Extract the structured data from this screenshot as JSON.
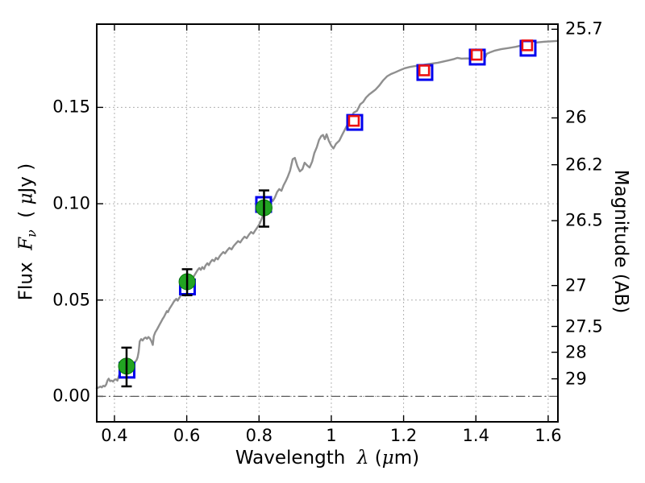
{
  "figure": {
    "xlabel_parts": {
      "prefix": "Wavelength  ",
      "lambda": "λ",
      "paren": " (",
      "mu": "μ",
      "suffix": "m)"
    },
    "ylabel_left_parts": {
      "prefix": "Flux  ",
      "F": "F",
      "nu": "ν",
      "paren": "  ( ",
      "mu": "μ",
      "suffix": "Jy )"
    },
    "ylabel_right": "Magnitude (AB)"
  },
  "chart_data": {
    "type": "line",
    "title": "",
    "xlabel": "Wavelength λ (μm)",
    "ylabel_left": "Flux Fν ( μJy )",
    "ylabel_right": "Magnitude (AB)",
    "xlim": [
      0.351,
      1.627
    ],
    "ylim": [
      -0.0132,
      0.1932
    ],
    "grid": "dotted",
    "x_ticks": {
      "values": [
        0.4,
        0.6,
        0.8,
        1.0,
        1.2,
        1.4,
        1.6
      ],
      "labels": [
        "0.4",
        "0.6",
        "0.8",
        "1",
        "1.2",
        "1.4",
        "1.6"
      ]
    },
    "y_ticks_left": {
      "values": [
        0.0,
        0.05,
        0.1,
        0.15
      ],
      "labels": [
        "0.00",
        "0.05",
        "0.10",
        "0.15"
      ]
    },
    "y_ticks_right": {
      "values": [
        25.7,
        26,
        26.2,
        26.5,
        27,
        27.5,
        28,
        29
      ],
      "labels": [
        "25.7",
        "26",
        "26.2",
        "26.5",
        "27",
        "27.5",
        "28",
        "29"
      ],
      "flux_equivalent": [
        0.19055,
        0.14454,
        0.12023,
        0.0912,
        0.05754,
        0.03631,
        0.02291,
        0.00912
      ]
    },
    "zero_line": {
      "y": 0.0,
      "style": "dash-dot",
      "color": "#5a5a5a"
    },
    "series": [
      {
        "name": "model-spectrum",
        "type": "line",
        "color": "#8f8f8f",
        "linewidth": 2.4,
        "points": [
          [
            0.351,
            0.0042
          ],
          [
            0.356,
            0.0046
          ],
          [
            0.361,
            0.0051
          ],
          [
            0.365,
            0.0047
          ],
          [
            0.369,
            0.0055
          ],
          [
            0.373,
            0.0052
          ],
          [
            0.377,
            0.0062
          ],
          [
            0.381,
            0.0083
          ],
          [
            0.384,
            0.0092
          ],
          [
            0.388,
            0.0079
          ],
          [
            0.392,
            0.0082
          ],
          [
            0.396,
            0.0077
          ],
          [
            0.4,
            0.0086
          ],
          [
            0.404,
            0.0089
          ],
          [
            0.408,
            0.0082
          ],
          [
            0.412,
            0.0104
          ],
          [
            0.416,
            0.0127
          ],
          [
            0.419,
            0.0139
          ],
          [
            0.422,
            0.0158
          ],
          [
            0.425,
            0.0151
          ],
          [
            0.428,
            0.0177
          ],
          [
            0.431,
            0.017
          ],
          [
            0.434,
            0.0162
          ],
          [
            0.437,
            0.015
          ],
          [
            0.441,
            0.0146
          ],
          [
            0.445,
            0.0159
          ],
          [
            0.449,
            0.0171
          ],
          [
            0.453,
            0.0162
          ],
          [
            0.457,
            0.0179
          ],
          [
            0.461,
            0.0188
          ],
          [
            0.464,
            0.0203
          ],
          [
            0.467,
            0.0232
          ],
          [
            0.47,
            0.0286
          ],
          [
            0.474,
            0.0297
          ],
          [
            0.478,
            0.029
          ],
          [
            0.482,
            0.0301
          ],
          [
            0.486,
            0.0306
          ],
          [
            0.49,
            0.0299
          ],
          [
            0.494,
            0.0308
          ],
          [
            0.498,
            0.0301
          ],
          [
            0.502,
            0.0287
          ],
          [
            0.506,
            0.0267
          ],
          [
            0.509,
            0.0313
          ],
          [
            0.513,
            0.0333
          ],
          [
            0.517,
            0.0345
          ],
          [
            0.521,
            0.0359
          ],
          [
            0.525,
            0.0373
          ],
          [
            0.529,
            0.0387
          ],
          [
            0.533,
            0.0401
          ],
          [
            0.537,
            0.0413
          ],
          [
            0.541,
            0.0428
          ],
          [
            0.545,
            0.0443
          ],
          [
            0.548,
            0.0437
          ],
          [
            0.552,
            0.0454
          ],
          [
            0.556,
            0.0466
          ],
          [
            0.56,
            0.0478
          ],
          [
            0.564,
            0.0491
          ],
          [
            0.568,
            0.05
          ],
          [
            0.571,
            0.0506
          ],
          [
            0.575,
            0.0497
          ],
          [
            0.579,
            0.051
          ],
          [
            0.583,
            0.0522
          ],
          [
            0.587,
            0.0534
          ],
          [
            0.59,
            0.0541
          ],
          [
            0.593,
            0.0531
          ],
          [
            0.596,
            0.0523
          ],
          [
            0.599,
            0.0543
          ],
          [
            0.603,
            0.0565
          ],
          [
            0.607,
            0.0581
          ],
          [
            0.611,
            0.0596
          ],
          [
            0.615,
            0.0608
          ],
          [
            0.619,
            0.0621
          ],
          [
            0.623,
            0.0634
          ],
          [
            0.627,
            0.0646
          ],
          [
            0.631,
            0.0658
          ],
          [
            0.635,
            0.0666
          ],
          [
            0.639,
            0.0657
          ],
          [
            0.643,
            0.0671
          ],
          [
            0.648,
            0.0661
          ],
          [
            0.652,
            0.0679
          ],
          [
            0.657,
            0.0691
          ],
          [
            0.661,
            0.0681
          ],
          [
            0.666,
            0.0698
          ],
          [
            0.671,
            0.0709
          ],
          [
            0.676,
            0.0702
          ],
          [
            0.681,
            0.0719
          ],
          [
            0.686,
            0.0711
          ],
          [
            0.691,
            0.0727
          ],
          [
            0.696,
            0.0739
          ],
          [
            0.701,
            0.0749
          ],
          [
            0.706,
            0.0742
          ],
          [
            0.712,
            0.0758
          ],
          [
            0.718,
            0.0771
          ],
          [
            0.724,
            0.0763
          ],
          [
            0.73,
            0.0781
          ],
          [
            0.736,
            0.0794
          ],
          [
            0.742,
            0.0806
          ],
          [
            0.748,
            0.0799
          ],
          [
            0.754,
            0.0816
          ],
          [
            0.76,
            0.0829
          ],
          [
            0.766,
            0.0821
          ],
          [
            0.772,
            0.0839
          ],
          [
            0.778,
            0.0853
          ],
          [
            0.784,
            0.0845
          ],
          [
            0.79,
            0.0863
          ],
          [
            0.796,
            0.0879
          ],
          [
            0.802,
            0.0897
          ],
          [
            0.808,
            0.0926
          ],
          [
            0.814,
            0.0958
          ],
          [
            0.82,
            0.0987
          ],
          [
            0.826,
            0.1009
          ],
          [
            0.832,
            0.1029
          ],
          [
            0.838,
            0.1014
          ],
          [
            0.844,
            0.1033
          ],
          [
            0.85,
            0.1061
          ],
          [
            0.856,
            0.1076
          ],
          [
            0.862,
            0.1067
          ],
          [
            0.868,
            0.1096
          ],
          [
            0.874,
            0.1117
          ],
          [
            0.88,
            0.1142
          ],
          [
            0.886,
            0.1172
          ],
          [
            0.893,
            0.1231
          ],
          [
            0.899,
            0.1238
          ],
          [
            0.906,
            0.1196
          ],
          [
            0.913,
            0.1168
          ],
          [
            0.92,
            0.1179
          ],
          [
            0.926,
            0.1213
          ],
          [
            0.933,
            0.1199
          ],
          [
            0.94,
            0.1188
          ],
          [
            0.947,
            0.1219
          ],
          [
            0.953,
            0.1263
          ],
          [
            0.96,
            0.1294
          ],
          [
            0.966,
            0.1331
          ],
          [
            0.972,
            0.1351
          ],
          [
            0.977,
            0.1357
          ],
          [
            0.982,
            0.1335
          ],
          [
            0.987,
            0.1361
          ],
          [
            0.993,
            0.1327
          ],
          [
            1.0,
            0.1301
          ],
          [
            1.006,
            0.1287
          ],
          [
            1.013,
            0.1311
          ],
          [
            1.022,
            0.1327
          ],
          [
            1.031,
            0.1361
          ],
          [
            1.041,
            0.1397
          ],
          [
            1.051,
            0.1432
          ],
          [
            1.062,
            0.1473
          ],
          [
            1.071,
            0.1482
          ],
          [
            1.08,
            0.1516
          ],
          [
            1.088,
            0.1528
          ],
          [
            1.096,
            0.1551
          ],
          [
            1.104,
            0.1566
          ],
          [
            1.113,
            0.1579
          ],
          [
            1.122,
            0.1592
          ],
          [
            1.132,
            0.1612
          ],
          [
            1.143,
            0.1639
          ],
          [
            1.154,
            0.1661
          ],
          [
            1.165,
            0.1673
          ],
          [
            1.177,
            0.1682
          ],
          [
            1.19,
            0.1693
          ],
          [
            1.203,
            0.1703
          ],
          [
            1.22,
            0.1711
          ],
          [
            1.237,
            0.1716
          ],
          [
            1.254,
            0.172
          ],
          [
            1.266,
            0.1724
          ],
          [
            1.281,
            0.1728
          ],
          [
            1.295,
            0.1732
          ],
          [
            1.31,
            0.1738
          ],
          [
            1.326,
            0.1745
          ],
          [
            1.34,
            0.1751
          ],
          [
            1.349,
            0.1757
          ],
          [
            1.36,
            0.1753
          ],
          [
            1.375,
            0.1754
          ],
          [
            1.39,
            0.1753
          ],
          [
            1.404,
            0.1752
          ],
          [
            1.416,
            0.1745
          ],
          [
            1.424,
            0.1753
          ],
          [
            1.43,
            0.1778
          ],
          [
            1.441,
            0.1787
          ],
          [
            1.453,
            0.1795
          ],
          [
            1.47,
            0.1802
          ],
          [
            1.49,
            0.1808
          ],
          [
            1.51,
            0.1814
          ],
          [
            1.53,
            0.1823
          ],
          [
            1.55,
            0.1831
          ],
          [
            1.57,
            0.1837
          ],
          [
            1.59,
            0.1841
          ],
          [
            1.61,
            0.1843
          ],
          [
            1.627,
            0.1845
          ]
        ]
      },
      {
        "name": "model-photometry-squares",
        "type": "scatter",
        "marker": "open-square",
        "color": "#0000ee",
        "size": 18,
        "stroke": 3,
        "points": [
          [
            0.4346,
            0.0136
          ],
          [
            0.6019,
            0.0568
          ],
          [
            0.8127,
            0.0996
          ],
          [
            1.0648,
            0.1422
          ],
          [
            1.2589,
            0.1681
          ],
          [
            1.4039,
            0.1761
          ],
          [
            1.5444,
            0.1807
          ]
        ]
      },
      {
        "name": "observed-photometry-squares",
        "type": "scatter",
        "marker": "open-square",
        "color": "#ee1111",
        "size": 12,
        "stroke": 2.6,
        "points": [
          [
            1.0625,
            0.143
          ],
          [
            1.257,
            0.1692
          ],
          [
            1.402,
            0.1773
          ],
          [
            1.542,
            0.1822
          ]
        ]
      },
      {
        "name": "observed-photometry-circles",
        "type": "scatter",
        "marker": "filled-circle",
        "color": "#22a422",
        "edge_color": "#0b7a0b",
        "size": 10,
        "error_color": "#000000",
        "points": [
          {
            "x": 0.4335,
            "y": 0.0157,
            "err_plus": 0.0096,
            "err_minus": 0.0105
          },
          {
            "x": 0.601,
            "y": 0.0595,
            "err_plus": 0.0065,
            "err_minus": 0.007
          },
          {
            "x": 0.8138,
            "y": 0.0979,
            "err_plus": 0.009,
            "err_minus": 0.0098
          }
        ]
      }
    ]
  },
  "style": {
    "frame_color": "#000000",
    "grid_color": "#a8a8a8",
    "tick_color": "#000000",
    "background": "#ffffff"
  }
}
